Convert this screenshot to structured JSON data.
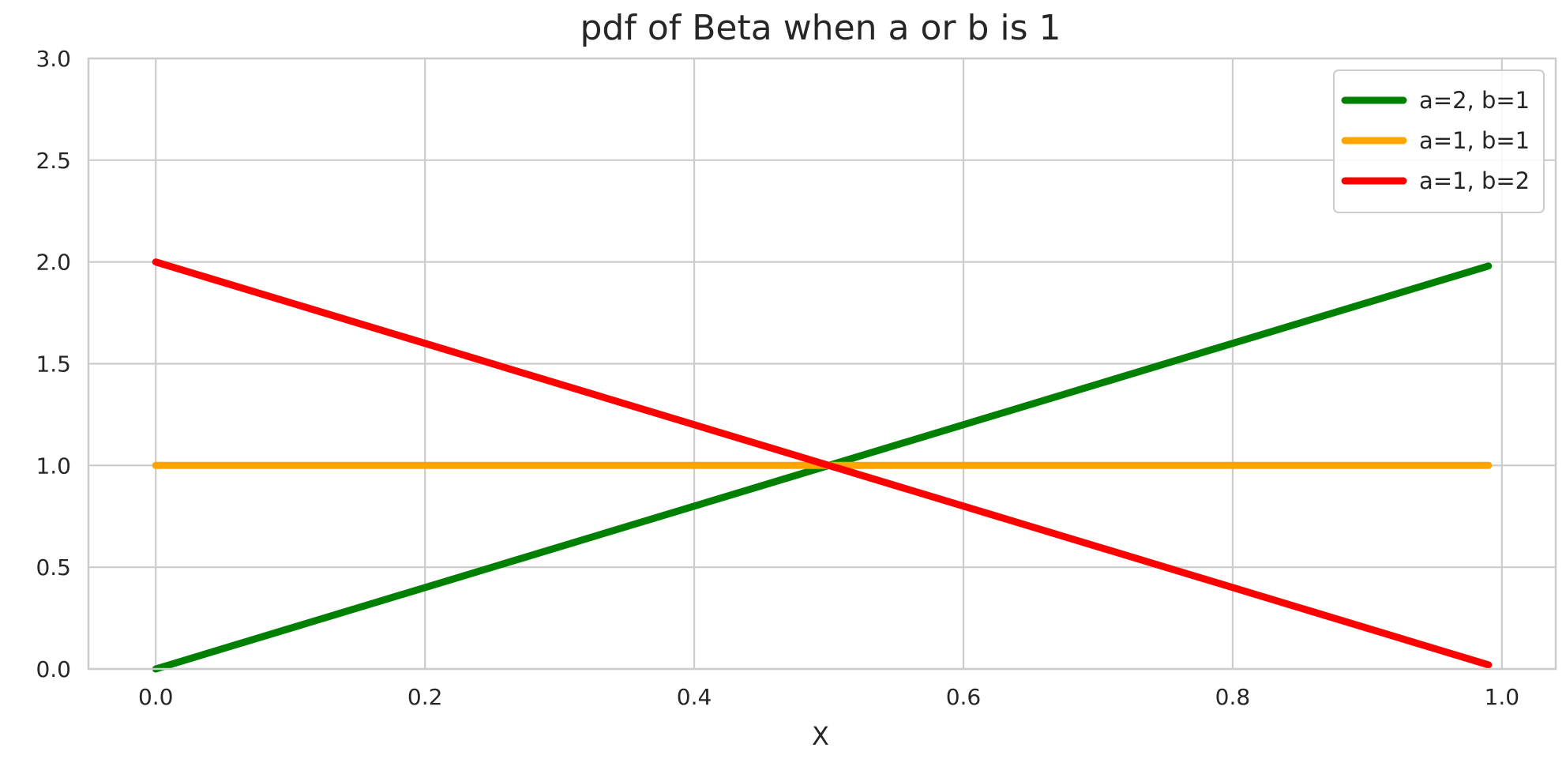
{
  "chart_data": {
    "type": "line",
    "title": "pdf of Beta when a or b is 1",
    "xlabel": "X",
    "ylabel": "",
    "xlim": [
      -0.05,
      1.04
    ],
    "ylim": [
      0.0,
      3.0
    ],
    "xticks": [
      0.0,
      0.2,
      0.4,
      0.6,
      0.8,
      1.0
    ],
    "yticks": [
      0.0,
      0.5,
      1.0,
      1.5,
      2.0,
      2.5,
      3.0
    ],
    "xtick_labels": [
      "0.0",
      "0.2",
      "0.4",
      "0.6",
      "0.8",
      "1.0"
    ],
    "ytick_labels": [
      "0.0",
      "0.5",
      "1.0",
      "1.5",
      "2.0",
      "2.5",
      "3.0"
    ],
    "grid": true,
    "legend_position": "top-right",
    "series": [
      {
        "name": "a=2, b=1",
        "color": "#008000",
        "x": [
          0.0,
          0.5,
          0.99
        ],
        "y": [
          0.0,
          1.0,
          1.98
        ]
      },
      {
        "name": "a=1, b=1",
        "color": "#ffa500",
        "x": [
          0.0,
          0.5,
          0.99
        ],
        "y": [
          1.0,
          1.0,
          1.0
        ]
      },
      {
        "name": "a=1, b=2",
        "color": "#ff0000",
        "x": [
          0.0,
          0.5,
          0.99
        ],
        "y": [
          2.0,
          1.0,
          0.02
        ]
      }
    ]
  }
}
